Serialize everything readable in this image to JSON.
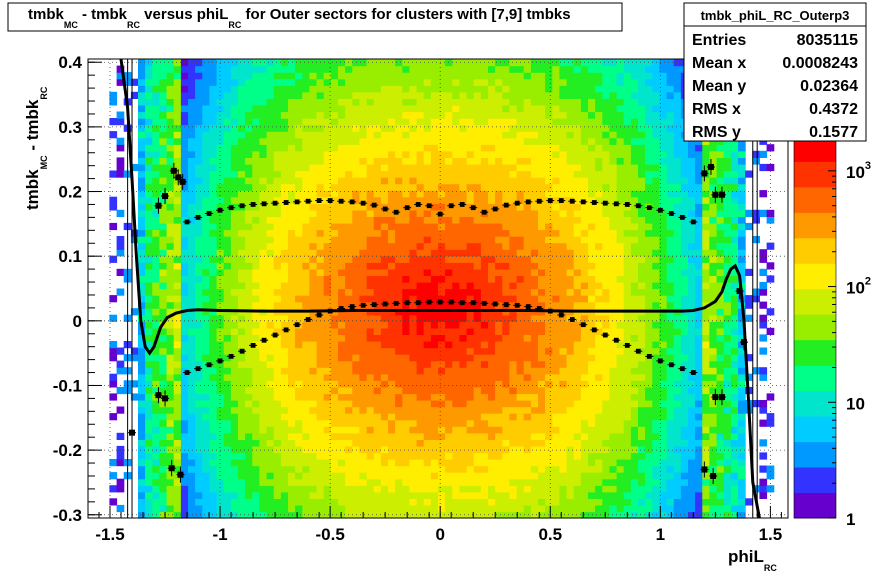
{
  "chart_data": {
    "type": "heatmap",
    "title": {
      "parts": [
        {
          "t": "tmbk",
          "sub": "MC"
        },
        {
          "t": " - tmbk",
          "sub": "RC"
        },
        {
          "t": " versus phiL",
          "sub": "RC"
        },
        {
          "t": " for Outer sectors for clusters with [7,9] tmbks",
          "sub": ""
        }
      ]
    },
    "xlabel": {
      "t": "phiL",
      "sub": "RC"
    },
    "ylabel": {
      "parts": [
        {
          "t": "tmbk",
          "sub": "MC"
        },
        {
          "t": " - tmbk",
          "sub": "RC"
        }
      ]
    },
    "xlim": [
      -1.6,
      1.58
    ],
    "ylim": [
      -0.305,
      0.405
    ],
    "x_ticks": [
      -1.5,
      -1,
      -0.5,
      0,
      0.5,
      1,
      1.5
    ],
    "x_tick_labels": [
      "-1.5",
      "-1",
      "-0.5",
      "0",
      "0.5",
      "1",
      "1.5"
    ],
    "y_ticks": [
      -0.3,
      -0.2,
      -0.1,
      0,
      0.1,
      0.2,
      0.3,
      0.4
    ],
    "y_tick_labels": [
      "-0.3",
      "-0.2",
      "-0.1",
      "0",
      "0.1",
      "0.2",
      "0.3",
      "0.4"
    ],
    "grid": true,
    "z_scale": "log",
    "z_range": [
      1,
      2000
    ],
    "z_ticks": [
      1,
      10,
      100,
      1000
    ],
    "z_tick_labels": [
      "1",
      "10",
      "10^2",
      "10^3"
    ],
    "palette": [
      "#6600cc",
      "#3333ff",
      "#0099ff",
      "#00ccff",
      "#00e5cc",
      "#00ff88",
      "#22ee22",
      "#99ee00",
      "#ccee00",
      "#ffee00",
      "#ffcc00",
      "#ff9900",
      "#ff6600",
      "#ff3300",
      "#ff0000"
    ],
    "density_model": {
      "x_center": 0.0,
      "y_center": 0.02,
      "outer_edge_x": 1.34,
      "edge_band_start_x": 1.18,
      "dead_band_x": [
        1.38,
        1.44
      ],
      "sparse_band_x": [
        1.44,
        1.5
      ]
    },
    "profile_mean": {
      "x": [
        -1.45,
        -1.42,
        -1.4,
        -1.38,
        -1.36,
        -1.34,
        -1.32,
        -1.3,
        -1.27,
        -1.24,
        -1.2,
        -1.15,
        -1.1,
        -1.0,
        -0.8,
        -0.6,
        -0.4,
        -0.2,
        0,
        0.2,
        0.4,
        0.6,
        0.8,
        1.0,
        1.1,
        1.15,
        1.2,
        1.25,
        1.28,
        1.3,
        1.32,
        1.34,
        1.36,
        1.38,
        1.4,
        1.42,
        1.45
      ],
      "y": [
        0.42,
        0.33,
        0.22,
        0.1,
        0.0,
        -0.04,
        -0.05,
        -0.04,
        -0.01,
        0.005,
        0.012,
        0.016,
        0.017,
        0.016,
        0.015,
        0.015,
        0.016,
        0.016,
        0.016,
        0.016,
        0.016,
        0.015,
        0.015,
        0.015,
        0.015,
        0.016,
        0.02,
        0.03,
        0.045,
        0.065,
        0.08,
        0.085,
        0.07,
        0.0,
        -0.12,
        -0.25,
        -0.35
      ]
    },
    "band_upper": {
      "x": [
        -1.15,
        -1.1,
        -1.05,
        -1.0,
        -0.95,
        -0.9,
        -0.85,
        -0.8,
        -0.75,
        -0.7,
        -0.65,
        -0.6,
        -0.55,
        -0.5,
        -0.45,
        -0.4,
        -0.35,
        -0.3,
        -0.25,
        -0.2,
        -0.15,
        -0.1,
        -0.05,
        0.0,
        0.05,
        0.1,
        0.15,
        0.2,
        0.25,
        0.3,
        0.35,
        0.4,
        0.45,
        0.5,
        0.55,
        0.6,
        0.65,
        0.7,
        0.75,
        0.8,
        0.85,
        0.9,
        0.95,
        1.0,
        1.05,
        1.1,
        1.15
      ],
      "y": [
        0.153,
        0.16,
        0.166,
        0.171,
        0.175,
        0.178,
        0.18,
        0.181,
        0.182,
        0.183,
        0.184,
        0.185,
        0.186,
        0.186,
        0.185,
        0.184,
        0.182,
        0.179,
        0.173,
        0.168,
        0.175,
        0.18,
        0.178,
        0.165,
        0.178,
        0.18,
        0.175,
        0.168,
        0.173,
        0.179,
        0.182,
        0.184,
        0.185,
        0.186,
        0.186,
        0.185,
        0.184,
        0.183,
        0.182,
        0.181,
        0.18,
        0.178,
        0.175,
        0.171,
        0.166,
        0.16,
        0.153
      ]
    },
    "band_lower": {
      "x": [
        -1.15,
        -1.1,
        -1.05,
        -1.0,
        -0.95,
        -0.9,
        -0.85,
        -0.8,
        -0.75,
        -0.7,
        -0.65,
        -0.6,
        -0.55,
        -0.5,
        -0.45,
        -0.4,
        -0.35,
        -0.3,
        -0.25,
        -0.2,
        -0.15,
        -0.1,
        -0.05,
        0.0,
        0.05,
        0.1,
        0.15,
        0.2,
        0.25,
        0.3,
        0.35,
        0.4,
        0.45,
        0.5,
        0.55,
        0.6,
        0.65,
        0.7,
        0.75,
        0.8,
        0.85,
        0.9,
        0.95,
        1.0,
        1.05,
        1.1,
        1.15
      ],
      "y": [
        -0.08,
        -0.074,
        -0.068,
        -0.062,
        -0.055,
        -0.047,
        -0.038,
        -0.03,
        -0.022,
        -0.014,
        -0.006,
        0.002,
        0.009,
        0.015,
        0.019,
        0.022,
        0.024,
        0.025,
        0.026,
        0.027,
        0.028,
        0.028,
        0.029,
        0.029,
        0.029,
        0.028,
        0.028,
        0.027,
        0.026,
        0.025,
        0.024,
        0.022,
        0.019,
        0.015,
        0.009,
        0.002,
        -0.006,
        -0.014,
        -0.022,
        -0.03,
        -0.038,
        -0.047,
        -0.055,
        -0.062,
        -0.068,
        -0.074,
        -0.08
      ]
    },
    "scattered_points": [
      {
        "x": -1.28,
        "y": 0.178
      },
      {
        "x": -1.25,
        "y": 0.193
      },
      {
        "x": -1.21,
        "y": 0.232
      },
      {
        "x": -1.19,
        "y": 0.222
      },
      {
        "x": -1.17,
        "y": 0.215
      },
      {
        "x": -1.28,
        "y": -0.115
      },
      {
        "x": -1.25,
        "y": -0.12
      },
      {
        "x": -1.4,
        "y": -0.173
      },
      {
        "x": -1.22,
        "y": -0.228
      },
      {
        "x": -1.18,
        "y": -0.238
      },
      {
        "x": 1.2,
        "y": 0.228
      },
      {
        "x": 1.23,
        "y": 0.238
      },
      {
        "x": 1.25,
        "y": 0.195
      },
      {
        "x": 1.28,
        "y": 0.195
      },
      {
        "x": 1.25,
        "y": -0.118
      },
      {
        "x": 1.28,
        "y": -0.118
      },
      {
        "x": 1.2,
        "y": -0.23
      },
      {
        "x": 1.24,
        "y": -0.24
      },
      {
        "x": 1.38,
        "y": -0.033
      },
      {
        "x": 1.36,
        "y": 0.046
      }
    ],
    "stats": {
      "name": "tmbk_phiL_RC_Outerp3",
      "rows": [
        {
          "label": "Entries",
          "value": "8035115"
        },
        {
          "label": "Mean x",
          "value": "0.0008243"
        },
        {
          "label": "Mean y",
          "value": "0.02364"
        },
        {
          "label": "RMS x",
          "value": "0.4372"
        },
        {
          "label": "RMS y",
          "value": "0.1577"
        }
      ]
    }
  }
}
